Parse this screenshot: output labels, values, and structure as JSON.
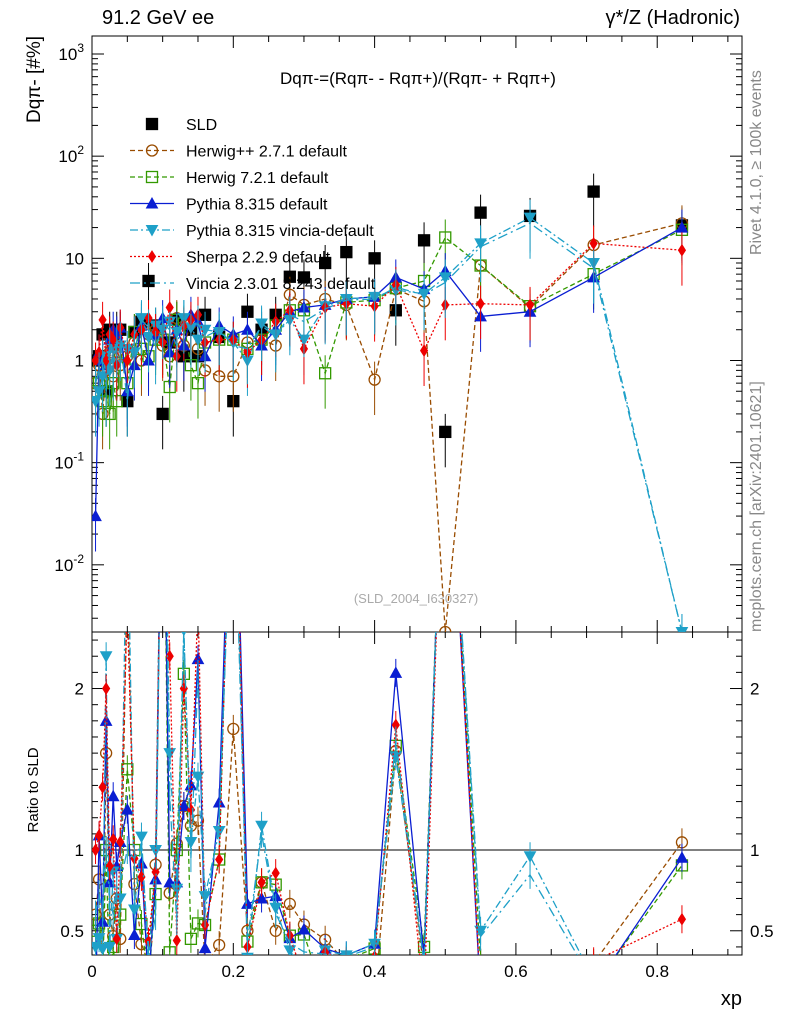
{
  "header": {
    "energy_label": "91.2 GeV ee",
    "process_label": "γ*/Z (Hadronic)"
  },
  "side_labels": {
    "rivet": "Rivet 4.1.0, ≥ 100k events",
    "mcplots": "mcplots.cern.ch [arXiv:2401.10621]"
  },
  "chart_data": {
    "type": "scatter",
    "formula": "Dqπ-=(Rqπ- - Rqπ+)/(Rqπ- + Rqπ+)",
    "watermark": "(SLD_2004_I630327)",
    "ylabel": "Dqπ- [#%]",
    "ratio_ylabel": "Ratio to SLD",
    "xlabel": "xp",
    "xlim": [
      0,
      0.92
    ],
    "ylim_main": [
      0.0022,
      1500
    ],
    "ylim_ratio": [
      0.35,
      2.35
    ],
    "yscale_main": "log",
    "x_ticks": [
      "0",
      "0.2",
      "0.4",
      "0.6",
      "0.8"
    ],
    "y_ticks_main": [
      "10-2",
      "10-1",
      "1",
      "10",
      "102",
      "103"
    ],
    "y_ticks_ratio": [
      "0.5",
      "1",
      "2"
    ],
    "x": [
      0.005,
      0.01,
      0.015,
      0.02,
      0.025,
      0.03,
      0.035,
      0.04,
      0.05,
      0.06,
      0.07,
      0.08,
      0.09,
      0.1,
      0.11,
      0.12,
      0.13,
      0.14,
      0.15,
      0.16,
      0.18,
      0.2,
      0.22,
      0.24,
      0.26,
      0.28,
      0.3,
      0.33,
      0.36,
      0.4,
      0.43,
      0.47,
      0.5,
      0.55,
      0.62,
      0.71,
      0.835
    ],
    "legend": [
      "SLD",
      "Herwig++ 2.7.1 default",
      "Herwig 7.2.1 default",
      "Pythia 8.315 default",
      "Pythia 8.315 vincia-default",
      "Sherpa 2.2.9 default",
      "Vincia 2.3.01 8.243 default"
    ],
    "series": [
      {
        "name": "SLD",
        "values": [
          1.0,
          1.1,
          1.8,
          0.5,
          2.0,
          1.5,
          2.0,
          2.0,
          0.4,
          1.9,
          2.4,
          6.0,
          2.2,
          0.3,
          1.5,
          2.5,
          1.1,
          2.0,
          1.1,
          2.8,
          1.7,
          0.4,
          3.0,
          2.0,
          2.8,
          6.6,
          6.5,
          9.0,
          11.5,
          10.0,
          3.1,
          15.0,
          0.2,
          28.0,
          26.0,
          45.0,
          21.0
        ]
      },
      {
        "name": "Herwig++ 2.7.1 default",
        "values": [
          0.6,
          0.9,
          0.3,
          0.8,
          1.2,
          0.7,
          1.4,
          0.9,
          1.1,
          1.5,
          1.0,
          1.8,
          2.0,
          1.4,
          1.1,
          2.6,
          1.4,
          2.3,
          1.3,
          0.8,
          0.7,
          0.7,
          1.5,
          1.6,
          1.4,
          4.4,
          3.5,
          4.0,
          3.5,
          0.65,
          5.0,
          3.8,
          0.0,
          8.5,
          3.3,
          13.5,
          22.0
        ]
      },
      {
        "name": "Herwig 7.2.1 default",
        "values": [
          0.5,
          0.6,
          0.4,
          0.5,
          0.3,
          0.6,
          0.4,
          1.2,
          0.6,
          1.9,
          1.3,
          1.1,
          1.6,
          1.6,
          0.55,
          2.5,
          2.3,
          0.9,
          0.6,
          1.5,
          1.6,
          1.6,
          1.3,
          1.6,
          2.2,
          3.1,
          3.1,
          0.75,
          3.7,
          3.9,
          5.1,
          6.0,
          16.0,
          8.5,
          3.4,
          7.0,
          19.0
        ]
      },
      {
        "name": "Pythia 8.315 default",
        "values": [
          0.03,
          1.2,
          1.0,
          0.9,
          1.6,
          2.0,
          1.8,
          2.1,
          0.5,
          0.9,
          2.2,
          1.0,
          1.8,
          2.6,
          1.2,
          2.0,
          1.4,
          2.8,
          2.4,
          1.1,
          2.2,
          1.8,
          2.0,
          1.4,
          2.0,
          3.0,
          3.3,
          3.5,
          4.0,
          4.2,
          6.5,
          5.0,
          7.5,
          2.7,
          3.0,
          6.5,
          20.0
        ]
      },
      {
        "name": "Pythia 8.315 vincia-default",
        "values": [
          0.4,
          0.5,
          0.7,
          1.1,
          0.8,
          1.3,
          0.9,
          1.4,
          1.3,
          1.2,
          2.6,
          1.7,
          2.2,
          2.0,
          2.4,
          1.9,
          2.6,
          2.1,
          1.6,
          2.0,
          1.9,
          1.5,
          1.0,
          2.3,
          1.8,
          2.5,
          1.6,
          3.4,
          4.0,
          4.2,
          4.9,
          4.5,
          6.5,
          14.0,
          25.0,
          9.0,
          0.0022
        ]
      },
      {
        "name": "Sherpa 2.2.9 default",
        "values": [
          1.0,
          1.2,
          2.5,
          1.0,
          1.8,
          1.6,
          0.9,
          2.1,
          1.0,
          1.8,
          2.0,
          2.6,
          1.9,
          1.5,
          3.3,
          1.1,
          2.2,
          2.5,
          2.8,
          1.5,
          1.6,
          1.6,
          1.2,
          1.6,
          2.4,
          3.1,
          1.3,
          3.3,
          3.6,
          3.4,
          5.5,
          1.25,
          3.5,
          3.6,
          3.5,
          14.0,
          12.0
        ]
      },
      {
        "name": "Vincia 2.3.01 8.243 default",
        "values": [
          0.6,
          0.8,
          1.1,
          0.5,
          1.4,
          0.9,
          1.5,
          1.6,
          0.4,
          1.8,
          2.5,
          2.1,
          1.3,
          2.3,
          2.0,
          1.4,
          2.6,
          1.9,
          2.3,
          1.7,
          2.0,
          1.4,
          1.3,
          2.2,
          1.7,
          2.8,
          2.4,
          3.2,
          3.9,
          4.0,
          5.2,
          4.4,
          5.8,
          13.0,
          22.0,
          8.0,
          0.0022
        ]
      }
    ],
    "colors": {
      "SLD": "#000000",
      "Herwig++ 2.7.1 default": "#994c00",
      "Herwig 7.2.1 default": "#339900",
      "Pythia 8.315 default": "#0a1ed2",
      "Pythia 8.315 vincia-default": "#1ea0c8",
      "Sherpa 2.2.9 default": "#ee0000",
      "Vincia 2.3.01 8.243 default": "#1ea0c8"
    }
  }
}
